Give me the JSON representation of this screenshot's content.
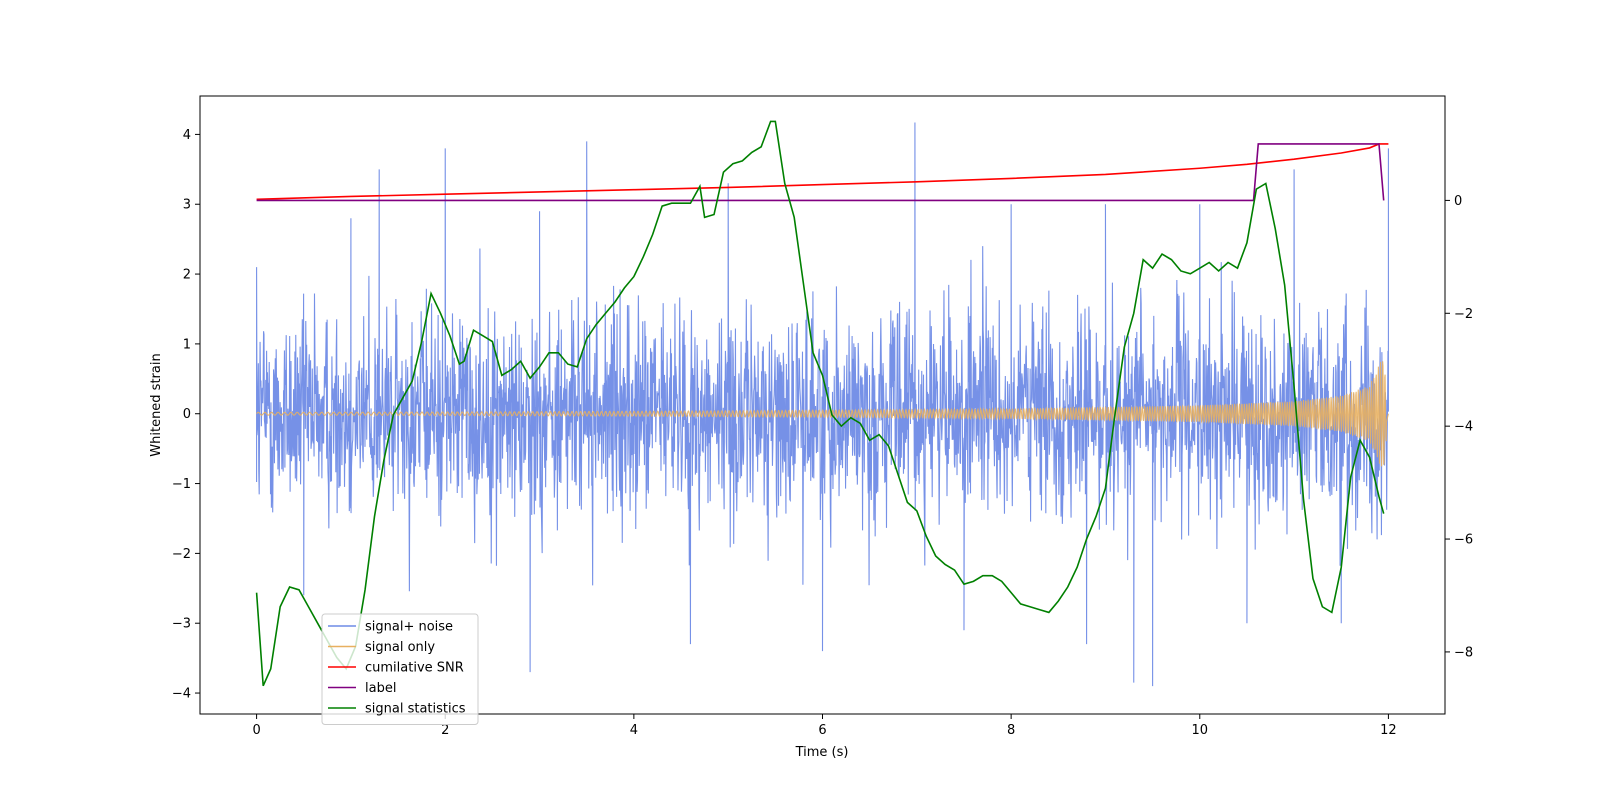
{
  "chart_data": {
    "type": "line",
    "title": "",
    "xlabel": "Time (s)",
    "ylabel": "Whitened strain",
    "y2label": "",
    "xlim": [
      -0.6,
      12.6
    ],
    "ylim": [
      -4.3,
      4.55
    ],
    "y2lim": [
      -9.1,
      1.85
    ],
    "grid": false,
    "legend_position": "lower-left",
    "x_ticks": [
      0,
      2,
      4,
      6,
      8,
      10,
      12
    ],
    "y_ticks": [
      -4,
      -3,
      -2,
      -1,
      0,
      1,
      2,
      3,
      4
    ],
    "y2_ticks": [
      -8,
      -6,
      -4,
      -2,
      0
    ],
    "series": [
      {
        "name": "signal+ noise",
        "color": "#6f8be6",
        "axis": "left",
        "description": "dense whitened strain noise spanning roughly -2.5 to 2.5 with spikes up to about 4.2 and down to about -3.9",
        "x": [
          0,
          0.5,
          1,
          1.3,
          2,
          2.9,
          3,
          3.5,
          4.6,
          5,
          6,
          6.98,
          7.5,
          8,
          8.8,
          9,
          9.3,
          9.5,
          10,
          10.5,
          11,
          11.5,
          12
        ],
        "values": [
          2.1,
          -2.6,
          2.8,
          3.5,
          3.8,
          -3.7,
          2.9,
          3.9,
          -3.3,
          3.3,
          -3.4,
          4.17,
          -3.1,
          3.0,
          -3.3,
          3.0,
          -3.85,
          -3.9,
          3.0,
          -3.0,
          3.5,
          -3.0,
          3.8
        ]
      },
      {
        "name": "signal only",
        "color": "#e8b060",
        "axis": "left",
        "description": "chirp signal with amplitude growing from about 0.02 to about 0.85 near t = 11.95 s",
        "x": [
          0,
          2,
          4,
          6,
          8,
          10,
          11,
          11.5,
          11.8,
          11.95,
          12
        ],
        "amplitude": [
          0.02,
          0.025,
          0.035,
          0.05,
          0.07,
          0.12,
          0.18,
          0.26,
          0.4,
          0.85,
          0
        ]
      },
      {
        "name": "cumilative SNR",
        "color": "#ff0000",
        "axis": "right",
        "x": [
          0,
          1,
          2,
          3,
          4,
          5,
          6,
          7,
          8,
          9,
          10,
          10.5,
          11,
          11.5,
          11.8,
          11.9,
          12
        ],
        "values": [
          0.02,
          0.07,
          0.11,
          0.15,
          0.19,
          0.23,
          0.28,
          0.33,
          0.39,
          0.46,
          0.57,
          0.64,
          0.73,
          0.84,
          0.93,
          1.0,
          1.0
        ]
      },
      {
        "name": "label",
        "color": "#800080",
        "axis": "right",
        "x": [
          0,
          10.57,
          10.62,
          11.9,
          11.95
        ],
        "values": [
          0,
          0,
          1,
          1,
          0
        ]
      },
      {
        "name": "signal statistics",
        "color": "#008000",
        "axis": "right",
        "x": [
          0,
          0.07,
          0.15,
          0.25,
          0.35,
          0.45,
          0.55,
          0.65,
          0.75,
          0.85,
          0.95,
          1.05,
          1.15,
          1.25,
          1.35,
          1.45,
          1.55,
          1.65,
          1.75,
          1.85,
          1.95,
          2.05,
          2.15,
          2.2,
          2.3,
          2.4,
          2.5,
          2.6,
          2.7,
          2.8,
          2.9,
          3.0,
          3.1,
          3.2,
          3.3,
          3.4,
          3.5,
          3.6,
          3.7,
          3.8,
          3.9,
          4.0,
          4.1,
          4.2,
          4.3,
          4.4,
          4.5,
          4.6,
          4.7,
          4.75,
          4.85,
          4.95,
          5.05,
          5.15,
          5.25,
          5.35,
          5.45,
          5.5,
          5.6,
          5.7,
          5.8,
          5.9,
          6.0,
          6.1,
          6.2,
          6.3,
          6.4,
          6.5,
          6.6,
          6.7,
          6.8,
          6.9,
          7.0,
          7.1,
          7.2,
          7.3,
          7.4,
          7.5,
          7.6,
          7.7,
          7.8,
          7.9,
          8.0,
          8.1,
          8.2,
          8.3,
          8.4,
          8.5,
          8.6,
          8.7,
          8.8,
          8.9,
          9.0,
          9.1,
          9.2,
          9.3,
          9.4,
          9.5,
          9.6,
          9.7,
          9.8,
          9.9,
          10.0,
          10.1,
          10.2,
          10.3,
          10.4,
          10.5,
          10.6,
          10.7,
          10.8,
          10.9,
          11.0,
          11.1,
          11.2,
          11.3,
          11.4,
          11.5,
          11.6,
          11.7,
          11.8,
          11.9,
          11.95
        ],
        "values": [
          -6.95,
          -8.6,
          -8.3,
          -7.2,
          -6.85,
          -6.9,
          -7.2,
          -7.5,
          -7.8,
          -8.1,
          -8.3,
          -7.9,
          -6.9,
          -5.6,
          -4.6,
          -3.8,
          -3.5,
          -3.2,
          -2.5,
          -1.65,
          -2.0,
          -2.4,
          -2.9,
          -2.85,
          -2.3,
          -2.4,
          -2.5,
          -3.1,
          -3.0,
          -2.85,
          -3.15,
          -2.95,
          -2.7,
          -2.7,
          -2.9,
          -2.95,
          -2.45,
          -2.2,
          -2.0,
          -1.8,
          -1.55,
          -1.35,
          -1.0,
          -0.6,
          -0.1,
          -0.05,
          -0.05,
          -0.05,
          0.25,
          -0.3,
          -0.25,
          0.5,
          0.65,
          0.7,
          0.85,
          0.95,
          1.4,
          1.4,
          0.3,
          -0.3,
          -1.5,
          -2.7,
          -3.1,
          -3.8,
          -4.0,
          -3.85,
          -3.95,
          -4.25,
          -4.15,
          -4.35,
          -4.85,
          -5.35,
          -5.5,
          -5.95,
          -6.3,
          -6.45,
          -6.55,
          -6.8,
          -6.75,
          -6.65,
          -6.65,
          -6.75,
          -6.95,
          -7.15,
          -7.2,
          -7.25,
          -7.3,
          -7.1,
          -6.85,
          -6.5,
          -6.0,
          -5.6,
          -5.1,
          -3.8,
          -2.6,
          -2.0,
          -1.05,
          -1.2,
          -0.95,
          -1.05,
          -1.25,
          -1.3,
          -1.2,
          -1.1,
          -1.25,
          -1.1,
          -1.2,
          -0.75,
          0.2,
          0.3,
          -0.5,
          -1.5,
          -3.3,
          -5.3,
          -6.7,
          -7.2,
          -7.3,
          -6.5,
          -4.9,
          -4.25,
          -4.55,
          -5.25,
          -5.55
        ]
      }
    ]
  }
}
